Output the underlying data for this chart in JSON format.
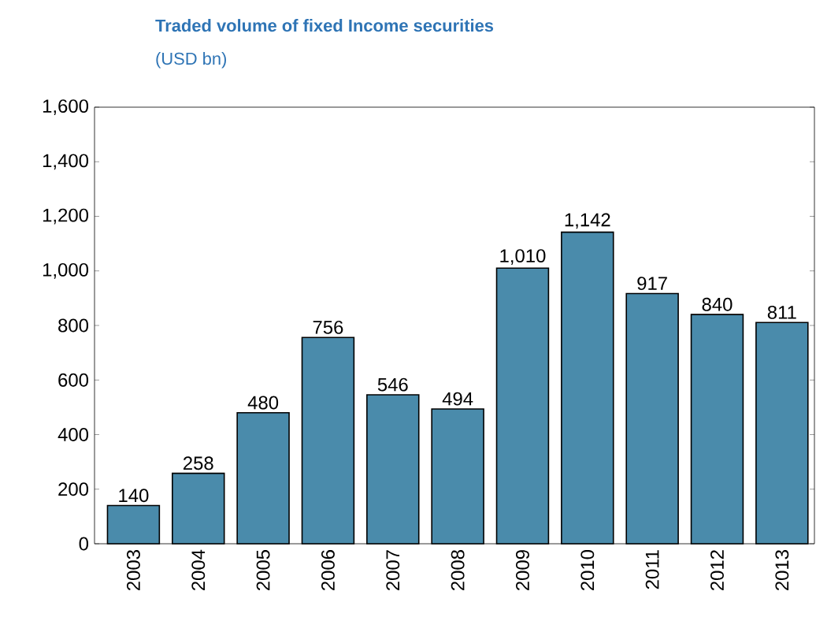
{
  "chart_data": {
    "type": "bar",
    "title": "Traded volume of fixed Income securities",
    "subtitle": "(USD bn)",
    "categories": [
      "2003",
      "2004",
      "2005",
      "2006",
      "2007",
      "2008",
      "2009",
      "2010",
      "2011",
      "2012",
      "2013"
    ],
    "values": [
      140,
      258,
      480,
      756,
      546,
      494,
      1010,
      1142,
      917,
      840,
      811
    ],
    "value_labels": [
      "140",
      "258",
      "480",
      "756",
      "546",
      "494",
      "1,010",
      "1,142",
      "917",
      "840",
      "811"
    ],
    "color": "#4a8bab",
    "ylim": [
      0,
      1600
    ],
    "yticks": [
      0,
      200,
      400,
      600,
      800,
      {
        "value": 1000,
        "label": "1,000"
      },
      {
        "value": 1200,
        "label": "1,200"
      },
      {
        "value": 1400,
        "label": "1,400"
      },
      {
        "value": 1600,
        "label": "1,600"
      }
    ],
    "grid": false
  }
}
